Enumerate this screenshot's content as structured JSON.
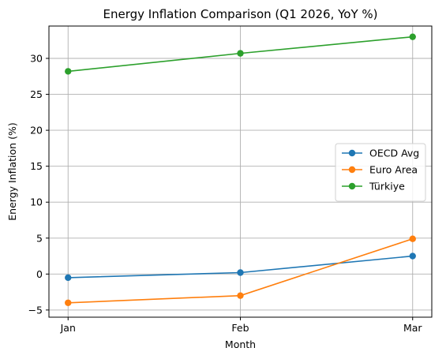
{
  "chart_data": {
    "type": "line",
    "title": "Energy Inflation Comparison (Q1 2026, YoY %)",
    "xlabel": "Month",
    "ylabel": "Energy Inflation (%)",
    "categories": [
      "Jan",
      "Feb",
      "Mar"
    ],
    "ylim": [
      -6,
      34.5
    ],
    "yticks": [
      -5,
      0,
      5,
      10,
      15,
      20,
      25,
      30
    ],
    "grid": true,
    "legend_position": "center-right",
    "series": [
      {
        "name": "OECD Avg",
        "color": "#1f77b4",
        "values": [
          -0.5,
          0.2,
          2.5
        ]
      },
      {
        "name": "Euro Area",
        "color": "#ff7f0e",
        "values": [
          -4.0,
          -3.0,
          4.9
        ]
      },
      {
        "name": "Türkiye",
        "color": "#2ca02c",
        "values": [
          28.2,
          30.7,
          33.0
        ]
      }
    ]
  }
}
